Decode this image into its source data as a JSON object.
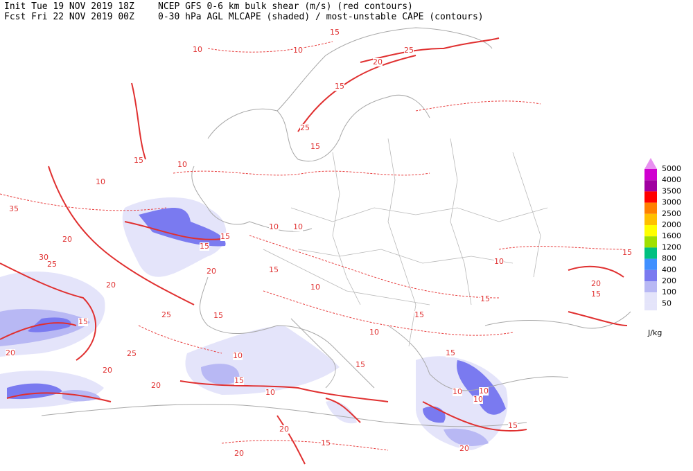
{
  "header": {
    "init": "Init  Tue 19 NOV 2019 18Z",
    "forecast": "Fcst Fri 22 NOV 2019 00Z",
    "product_line_1": "NCEP GFS 0-6 km bulk shear (m/s) (red contours)",
    "product_line_2": "0-30 hPa AGL MLCAPE (shaded) / most-unstable CAPE (contours)"
  },
  "legend": {
    "unit": "J/kg",
    "levels": [
      {
        "value": 5000,
        "color": "#ff00ff"
      },
      {
        "value": 4000,
        "color": "#d000d0"
      },
      {
        "value": 3500,
        "color": "#a000a0"
      },
      {
        "value": 3000,
        "color": "#ff0000"
      },
      {
        "value": 2500,
        "color": "#ff8000"
      },
      {
        "value": 2000,
        "color": "#ffc000"
      },
      {
        "value": 1600,
        "color": "#ffff00"
      },
      {
        "value": 1200,
        "color": "#a0e000"
      },
      {
        "value": 800,
        "color": "#00c080"
      },
      {
        "value": 400,
        "color": "#4090ff"
      },
      {
        "value": 200,
        "color": "#7a7af0"
      },
      {
        "value": 100,
        "color": "#b8b8f4"
      },
      {
        "value": 50,
        "color": "#e4e4fa"
      }
    ]
  },
  "contour_labels": [
    15,
    25,
    10,
    20,
    10,
    15,
    25,
    15,
    15,
    10,
    10,
    35,
    20,
    30,
    25,
    15,
    15,
    20,
    20,
    15,
    25,
    20,
    25,
    20,
    20,
    15,
    10,
    10,
    10,
    10,
    10,
    15,
    20,
    15,
    20,
    20,
    15,
    15,
    15,
    20,
    10,
    15,
    10,
    15,
    10,
    10,
    15,
    10,
    15,
    15
  ]
}
